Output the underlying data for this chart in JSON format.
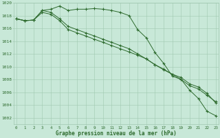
{
  "x": [
    0,
    1,
    2,
    3,
    4,
    5,
    6,
    7,
    8,
    9,
    10,
    11,
    12,
    13,
    14,
    15,
    16,
    17,
    18,
    19,
    20,
    21,
    22,
    23
  ],
  "series": [
    [
      1017.5,
      1017.2,
      1017.3,
      1018.8,
      1019.0,
      1019.5,
      1018.8,
      1019.0,
      1019.0,
      1019.1,
      1019.0,
      1018.8,
      1018.5,
      1018.0,
      1015.8,
      1014.5,
      1012.2,
      1010.5,
      1008.5,
      1008.0,
      1006.3,
      1005.0,
      1003.0,
      1002.3
    ],
    [
      1017.5,
      1017.2,
      1017.3,
      1018.8,
      1018.5,
      1017.5,
      1016.3,
      1015.8,
      1015.3,
      1014.8,
      1014.3,
      1013.8,
      1013.3,
      1012.8,
      1012.0,
      1011.2,
      1010.3,
      1009.5,
      1008.8,
      1008.0,
      1007.0,
      1006.5,
      1005.5,
      1004.5
    ],
    [
      1017.5,
      1017.2,
      1017.3,
      1018.5,
      1018.2,
      1017.2,
      1015.8,
      1015.3,
      1014.8,
      1014.3,
      1013.8,
      1013.3,
      1012.8,
      1012.3,
      1011.8,
      1011.2,
      1010.3,
      1009.6,
      1008.8,
      1008.3,
      1007.3,
      1006.8,
      1005.8,
      1004.3
    ]
  ],
  "line_color": "#2d6a2d",
  "bg_color": "#c8e8d8",
  "grid_color": "#a0c8b0",
  "text_color": "#2d6a2d",
  "ylim": [
    1001,
    1020
  ],
  "yticks": [
    1002,
    1004,
    1006,
    1008,
    1010,
    1012,
    1014,
    1016,
    1018,
    1020
  ],
  "xticks": [
    0,
    1,
    2,
    3,
    4,
    5,
    6,
    7,
    8,
    9,
    10,
    11,
    12,
    13,
    14,
    15,
    16,
    17,
    18,
    19,
    20,
    21,
    22,
    23
  ],
  "xlabel": "Graphe pression niveau de la mer (hPa)",
  "figsize": [
    3.2,
    2.0
  ],
  "dpi": 100
}
